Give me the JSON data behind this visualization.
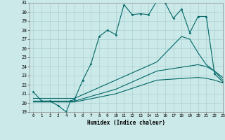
{
  "title": "",
  "xlabel": "Humidex (Indice chaleur)",
  "ylabel": "",
  "bg_color": "#cce9e9",
  "grid_color": "#aad0d0",
  "line_color": "#006666",
  "ylim": [
    19,
    31
  ],
  "xlim": [
    -0.5,
    23
  ],
  "yticks": [
    19,
    20,
    21,
    22,
    23,
    24,
    25,
    26,
    27,
    28,
    29,
    30,
    31
  ],
  "xticks": [
    0,
    1,
    2,
    3,
    4,
    5,
    6,
    7,
    8,
    9,
    10,
    11,
    12,
    13,
    14,
    15,
    16,
    17,
    18,
    19,
    20,
    21,
    22,
    23
  ],
  "line1_x": [
    0,
    1,
    2,
    3,
    4,
    4.5,
    5,
    6,
    7,
    8,
    9,
    10,
    11,
    12,
    13,
    14,
    15,
    16,
    17,
    18,
    19,
    20,
    21,
    22,
    23
  ],
  "line1_y": [
    21.2,
    20.2,
    20.2,
    19.7,
    19.0,
    20.2,
    20.4,
    22.5,
    24.3,
    27.3,
    28.0,
    27.5,
    30.8,
    29.7,
    29.8,
    29.7,
    31.2,
    31.0,
    29.3,
    30.3,
    27.7,
    29.5,
    29.5,
    23.2,
    22.3
  ],
  "line2_x": [
    0,
    5,
    10,
    15,
    18,
    19,
    20,
    21,
    22,
    23
  ],
  "line2_y": [
    20.5,
    20.5,
    22.5,
    24.5,
    27.3,
    27.0,
    25.5,
    24.2,
    23.5,
    22.5
  ],
  "line3_x": [
    0,
    5,
    10,
    15,
    20,
    21,
    22,
    23
  ],
  "line3_y": [
    20.2,
    20.2,
    21.5,
    23.5,
    24.2,
    24.0,
    23.5,
    22.8
  ],
  "line4_x": [
    0,
    5,
    10,
    15,
    20,
    21,
    22,
    23
  ],
  "line4_y": [
    20.1,
    20.1,
    21.0,
    22.5,
    22.8,
    22.7,
    22.5,
    22.2
  ]
}
